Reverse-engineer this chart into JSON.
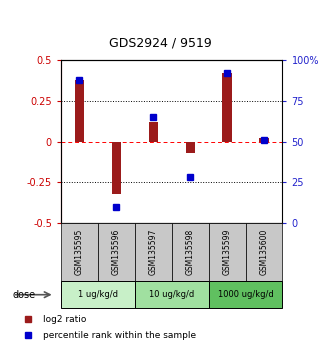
{
  "title": "GDS2924 / 9519",
  "samples": [
    "GSM135595",
    "GSM135596",
    "GSM135597",
    "GSM135598",
    "GSM135599",
    "GSM135600"
  ],
  "log2_ratios": [
    0.38,
    -0.32,
    0.12,
    -0.07,
    0.42,
    0.02
  ],
  "percentile_ranks": [
    88,
    10,
    65,
    28,
    92,
    51
  ],
  "dose_groups": [
    {
      "label": "1 ug/kg/d",
      "samples": [
        0,
        1
      ],
      "color": "#c8f0c8"
    },
    {
      "label": "10 ug/kg/d",
      "samples": [
        2,
        3
      ],
      "color": "#a0e0a0"
    },
    {
      "label": "1000 ug/kg/d",
      "samples": [
        4,
        5
      ],
      "color": "#60c060"
    }
  ],
  "bar_color": "#9B1B1B",
  "dot_color": "#0000CC",
  "left_axis_color": "#CC0000",
  "right_axis_color": "#2222CC",
  "ylim_left": [
    -0.5,
    0.5
  ],
  "ylim_right": [
    0,
    100
  ],
  "yticks_left": [
    -0.5,
    -0.25,
    0.0,
    0.25,
    0.5
  ],
  "ytick_labels_left": [
    "-0.5",
    "-0.25",
    "0",
    "0.25",
    "0.5"
  ],
  "yticks_right": [
    0,
    25,
    50,
    75,
    100
  ],
  "ytick_labels_right": [
    "0",
    "25",
    "50",
    "75",
    "100%"
  ],
  "legend_bar_label": "log2 ratio",
  "legend_dot_label": "percentile rank within the sample",
  "dose_label": "dose",
  "sample_box_color": "#C8C8C8",
  "bar_width": 0.25
}
